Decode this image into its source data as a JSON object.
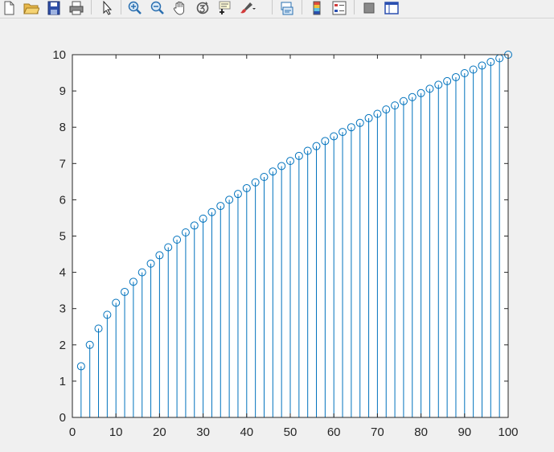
{
  "toolbar": {
    "buttons": [
      {
        "icon": "new-figure-icon"
      },
      {
        "icon": "open-file-icon"
      },
      {
        "icon": "save-icon"
      },
      {
        "icon": "print-icon"
      },
      {
        "icon": "edit-plot-arrow-icon"
      },
      {
        "icon": "zoom-in-icon"
      },
      {
        "icon": "zoom-out-icon"
      },
      {
        "icon": "pan-hand-icon"
      },
      {
        "icon": "rotate-3d-icon"
      },
      {
        "icon": "data-cursor-icon"
      },
      {
        "icon": "brush-icon"
      },
      {
        "icon": "link-plot-icon"
      },
      {
        "icon": "insert-colorbar-icon"
      },
      {
        "icon": "insert-legend-icon"
      },
      {
        "icon": "hide-plot-tools-icon"
      },
      {
        "icon": "show-plot-tools-icon"
      }
    ]
  },
  "chart_data": {
    "type": "stem",
    "title": "",
    "xlabel": "",
    "ylabel": "",
    "xlim": [
      0,
      100
    ],
    "ylim": [
      0,
      10
    ],
    "xticks": [
      0,
      10,
      20,
      30,
      40,
      50,
      60,
      70,
      80,
      90,
      100
    ],
    "yticks": [
      0,
      1,
      2,
      3,
      4,
      5,
      6,
      7,
      8,
      9,
      10
    ],
    "grid": false,
    "marker": "circle",
    "color": "#0072bd",
    "x": [
      2,
      4,
      6,
      8,
      10,
      12,
      14,
      16,
      18,
      20,
      22,
      24,
      26,
      28,
      30,
      32,
      34,
      36,
      38,
      40,
      42,
      44,
      46,
      48,
      50,
      52,
      54,
      56,
      58,
      60,
      62,
      64,
      66,
      68,
      70,
      72,
      74,
      76,
      78,
      80,
      82,
      84,
      86,
      88,
      90,
      92,
      94,
      96,
      98,
      100
    ],
    "y": [
      1.41,
      2.0,
      2.45,
      2.83,
      3.16,
      3.46,
      3.74,
      4.0,
      4.24,
      4.47,
      4.69,
      4.9,
      5.1,
      5.29,
      5.48,
      5.66,
      5.83,
      6.0,
      6.16,
      6.32,
      6.48,
      6.63,
      6.78,
      6.93,
      7.07,
      7.21,
      7.35,
      7.48,
      7.62,
      7.75,
      7.87,
      8.0,
      8.12,
      8.25,
      8.37,
      8.49,
      8.6,
      8.72,
      8.83,
      8.94,
      9.06,
      9.17,
      9.27,
      9.38,
      9.49,
      9.59,
      9.7,
      9.8,
      9.9,
      10.0
    ]
  }
}
